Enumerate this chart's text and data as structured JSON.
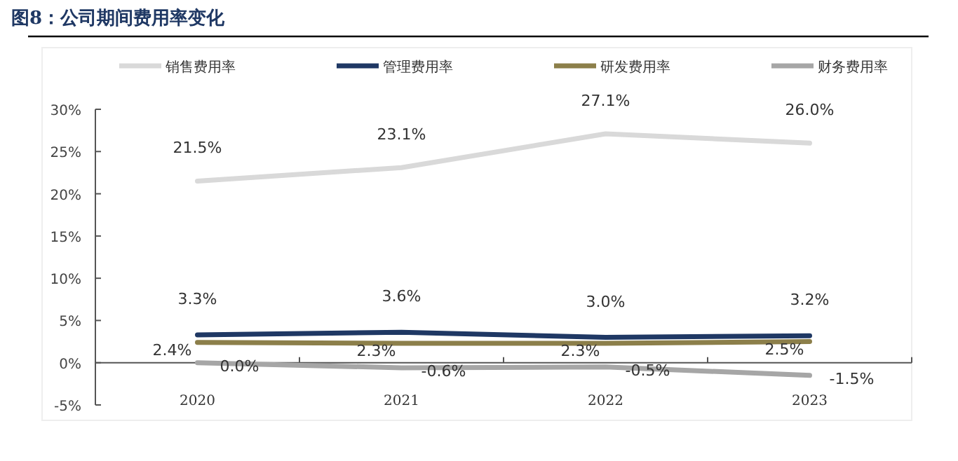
{
  "chart_data": {
    "type": "line",
    "title": "图8：公司期间费用率变化",
    "categories": [
      "2020",
      "2021",
      "2022",
      "2023"
    ],
    "series": [
      {
        "name": "销售费用率",
        "color": "#d9d9d9",
        "values": [
          21.5,
          23.1,
          27.1,
          26.0
        ],
        "value_labels": [
          "21.5%",
          "23.1%",
          "27.1%",
          "26.0%"
        ]
      },
      {
        "name": "管理费用率",
        "color": "#1f3864",
        "values": [
          3.3,
          3.6,
          3.0,
          3.2
        ],
        "value_labels": [
          "3.3%",
          "3.6%",
          "3.0%",
          "3.2%"
        ]
      },
      {
        "name": "研发费用率",
        "color": "#8c7f4a",
        "values": [
          2.4,
          2.3,
          2.3,
          2.5
        ],
        "value_labels": [
          "2.4%",
          "2.3%",
          "2.3%",
          "2.5%"
        ]
      },
      {
        "name": "财务费用率",
        "color": "#a6a6a6",
        "values": [
          0.0,
          -0.6,
          -0.5,
          -1.5
        ],
        "value_labels": [
          "0.0%",
          "-0.6%",
          "-0.5%",
          "-1.5%"
        ]
      }
    ],
    "ylim": [
      -5,
      30
    ],
    "yticks": [
      {
        "value": -5,
        "label": "-5%"
      },
      {
        "value": 0,
        "label": "0%"
      },
      {
        "value": 5,
        "label": "5%"
      },
      {
        "value": 10,
        "label": "10%"
      },
      {
        "value": 15,
        "label": "15%"
      },
      {
        "value": 20,
        "label": "20%"
      },
      {
        "value": 25,
        "label": "25%"
      },
      {
        "value": 30,
        "label": "30%"
      }
    ],
    "grid": false,
    "legend": "top",
    "marker": "none",
    "line_style": "solid"
  }
}
